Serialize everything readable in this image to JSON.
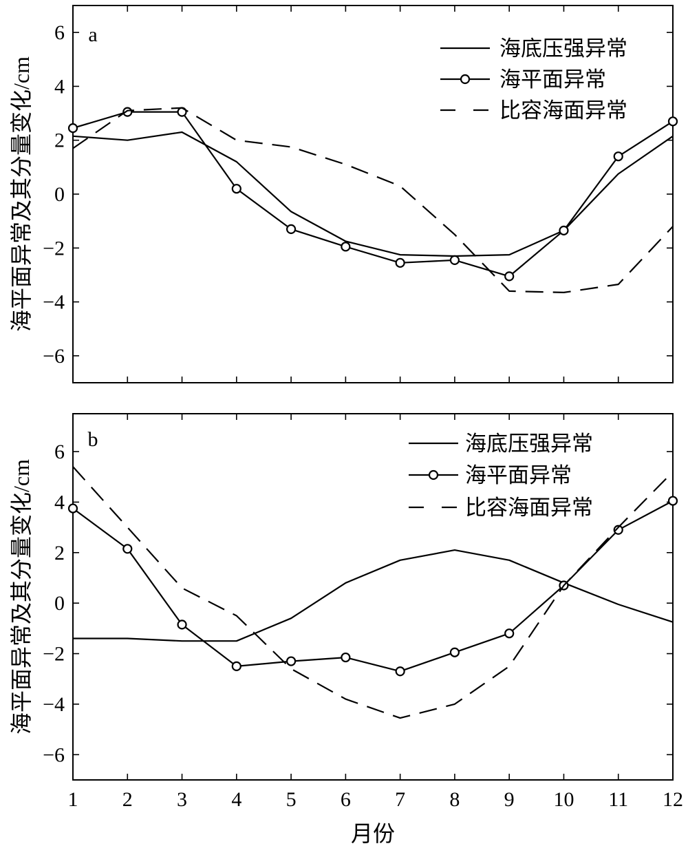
{
  "chart_data": [
    {
      "type": "line",
      "panel_label": "a",
      "ylabel": "海平面异常及其分量变化/cm",
      "xlabel": "",
      "x": [
        1,
        2,
        3,
        4,
        5,
        6,
        7,
        8,
        9,
        10,
        11,
        12
      ],
      "xlim": [
        1,
        12
      ],
      "ylim": [
        -7,
        7
      ],
      "xticks": [
        "1",
        "2",
        "3",
        "4",
        "5",
        "6",
        "7",
        "8",
        "9",
        "10",
        "11",
        "12"
      ],
      "yticks": [
        "6",
        "4",
        "2",
        "0",
        "−2",
        "−4",
        "−6"
      ],
      "ytick_values": [
        6,
        4,
        2,
        0,
        -2,
        -4,
        -6
      ],
      "legend_position": "top-right",
      "grid": false,
      "series": [
        {
          "name": "海底压强异常",
          "style": "solid",
          "values": [
            2.15,
            2.0,
            2.3,
            1.2,
            -0.65,
            -1.75,
            -2.25,
            -2.3,
            -2.25,
            -1.35,
            0.75,
            2.15
          ]
        },
        {
          "name": "海平面异常",
          "style": "circle",
          "values": [
            2.45,
            3.05,
            3.05,
            0.2,
            -1.3,
            -1.95,
            -2.55,
            -2.45,
            -3.05,
            -1.35,
            1.4,
            2.7
          ]
        },
        {
          "name": "比容海面异常",
          "style": "dashed",
          "values": [
            1.7,
            3.1,
            3.2,
            2.0,
            1.75,
            1.1,
            0.3,
            -1.5,
            -3.6,
            -3.65,
            -3.35,
            -1.2
          ]
        }
      ]
    },
    {
      "type": "line",
      "panel_label": "b",
      "ylabel": "海平面异常及其分量变化/cm",
      "xlabel": "月份",
      "x": [
        1,
        2,
        3,
        4,
        5,
        6,
        7,
        8,
        9,
        10,
        11,
        12
      ],
      "xlim": [
        1,
        12
      ],
      "ylim": [
        -7,
        7.5
      ],
      "xticks": [
        "1",
        "2",
        "3",
        "4",
        "5",
        "6",
        "7",
        "8",
        "9",
        "10",
        "11",
        "12"
      ],
      "yticks": [
        "6",
        "4",
        "2",
        "0",
        "−2",
        "−4",
        "−6"
      ],
      "ytick_values": [
        6,
        4,
        2,
        0,
        -2,
        -4,
        -6
      ],
      "legend_position": "top-right",
      "grid": false,
      "series": [
        {
          "name": "海底压强异常",
          "style": "solid",
          "values": [
            -1.4,
            -1.4,
            -1.5,
            -1.5,
            -0.6,
            0.8,
            1.7,
            2.1,
            1.7,
            0.8,
            -0.05,
            -0.75
          ]
        },
        {
          "name": "海平面异常",
          "style": "circle",
          "values": [
            3.75,
            2.15,
            -0.85,
            -2.5,
            -2.3,
            -2.15,
            -2.7,
            -1.95,
            -1.2,
            0.7,
            2.9,
            4.05
          ]
        },
        {
          "name": "比容海面异常",
          "style": "dashed",
          "values": [
            5.4,
            3.0,
            0.6,
            -0.5,
            -2.6,
            -3.8,
            -4.55,
            -4.0,
            -2.5,
            0.7,
            3.0,
            5.2
          ]
        }
      ]
    }
  ]
}
